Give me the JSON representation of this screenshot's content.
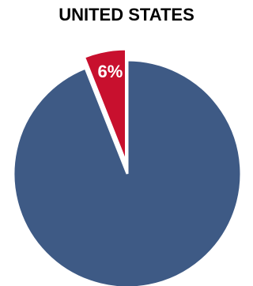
{
  "chart_data": {
    "type": "pie",
    "title": "UNITED STATES",
    "slices": [
      {
        "label": "",
        "value": 94,
        "color": "#3e5a85"
      },
      {
        "label": "6%",
        "value": 6,
        "color": "#c8102e",
        "exploded": true
      }
    ],
    "start": "12 o'clock, clockwise",
    "legend": "none"
  }
}
